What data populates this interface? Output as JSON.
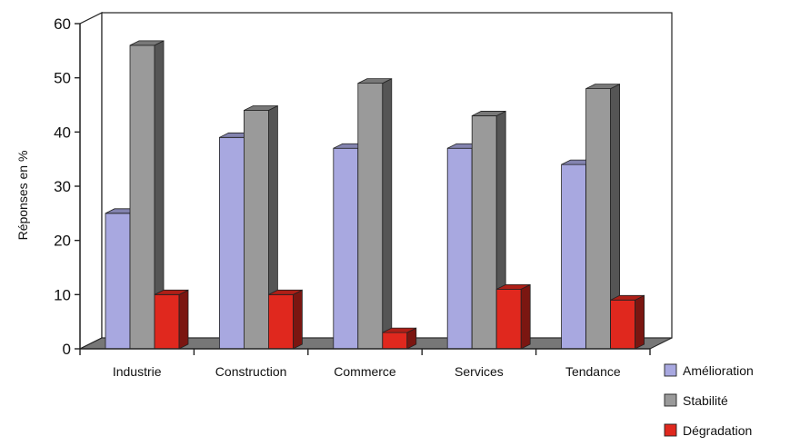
{
  "chart_data": {
    "type": "bar",
    "categories": [
      "Industrie",
      "Construction",
      "Commerce",
      "Services",
      "Tendance"
    ],
    "series": [
      {
        "name": "Amélioration",
        "values": [
          25,
          39,
          37,
          37,
          34
        ],
        "color": "#a8a8e0"
      },
      {
        "name": "Stabilité",
        "values": [
          56,
          44,
          49,
          43,
          48
        ],
        "color": "#9a9a9a"
      },
      {
        "name": "Dégradation",
        "values": [
          10,
          10,
          3,
          11,
          9
        ],
        "color": "#e0281e"
      }
    ],
    "title": "",
    "xlabel": "",
    "ylabel": "Réponses en %",
    "ylim": [
      0,
      60
    ],
    "yticks": [
      0,
      10,
      20,
      30,
      40,
      50,
      60
    ],
    "grid": false,
    "legend": "right",
    "style": "3d-clustered-bar"
  }
}
